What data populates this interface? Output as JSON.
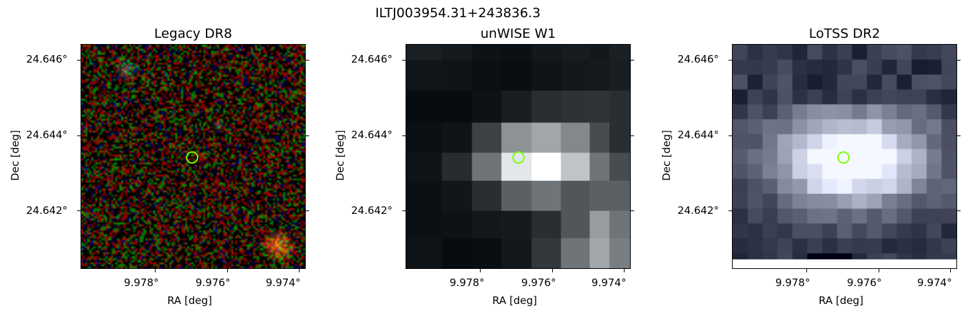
{
  "figure": {
    "source_name": "ILTJ003954.31+243836.3",
    "marker_color": "#7cff00"
  },
  "panels": [
    {
      "title": "Legacy DR8",
      "xlabel": "RA [deg]",
      "ylabel": "Dec [deg]",
      "xticks": [
        "9.978°",
        "9.976°",
        "9.974°"
      ],
      "yticks": [
        "24.646°",
        "24.644°",
        "24.642°"
      ],
      "image_kind": "rgb-noise"
    },
    {
      "title": "unWISE W1",
      "xlabel": "RA [deg]",
      "ylabel": "Dec [deg]",
      "xticks": [
        "9.978°",
        "9.976°",
        "9.974°"
      ],
      "yticks": [
        "24.646°",
        "24.644°",
        "24.642°"
      ],
      "image_kind": "grey-coarse"
    },
    {
      "title": "LoTSS DR2",
      "xlabel": "RA [deg]",
      "ylabel": "Dec [deg]",
      "xticks": [
        "9.978°",
        "9.976°",
        "9.974°"
      ],
      "yticks": [
        "24.646°",
        "24.644°",
        "24.642°"
      ],
      "image_kind": "grey-fine"
    }
  ]
}
